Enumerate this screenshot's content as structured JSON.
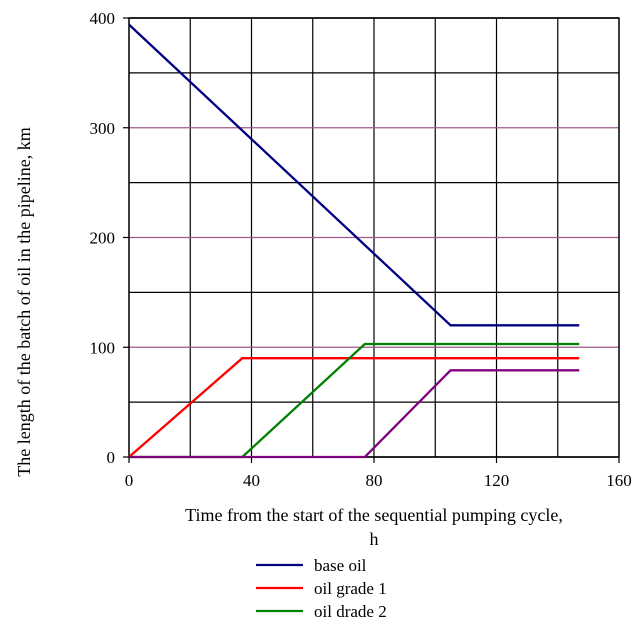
{
  "chart_data": {
    "type": "line",
    "xlabel_line1": "Time from the start of the sequential  pumping cycle,",
    "xlabel_line2": "h",
    "ylabel": "The length of the batch of oil in the pipeline,  km",
    "xlim": [
      0,
      160
    ],
    "ylim": [
      0,
      400
    ],
    "x_ticks": [
      0,
      40,
      80,
      120,
      160
    ],
    "x_minor_grid": [
      20,
      60,
      100,
      140
    ],
    "y_ticks": [
      0,
      100,
      200,
      300,
      400
    ],
    "y_minor_grid": [
      50,
      150,
      250,
      350
    ],
    "grid": true,
    "grid_colors": {
      "major_y": "#9b5a87",
      "other": "#000000"
    },
    "legend_position": "bottom",
    "series": [
      {
        "name": "base oil",
        "color": "#000080",
        "points": [
          [
            0,
            394
          ],
          [
            105,
            120
          ],
          [
            147,
            120
          ]
        ]
      },
      {
        "name": "oil grade  1",
        "color": "#ff0000",
        "points": [
          [
            0,
            0
          ],
          [
            37,
            90
          ],
          [
            147,
            90
          ]
        ]
      },
      {
        "name": "oil drade 2",
        "color": "#008000",
        "points": [
          [
            0,
            0
          ],
          [
            37,
            0
          ],
          [
            77,
            103
          ],
          [
            147,
            103
          ]
        ]
      },
      {
        "color": "#800080",
        "points": [
          [
            0,
            0
          ],
          [
            77,
            0
          ],
          [
            105,
            79
          ],
          [
            147,
            79
          ]
        ]
      }
    ]
  }
}
